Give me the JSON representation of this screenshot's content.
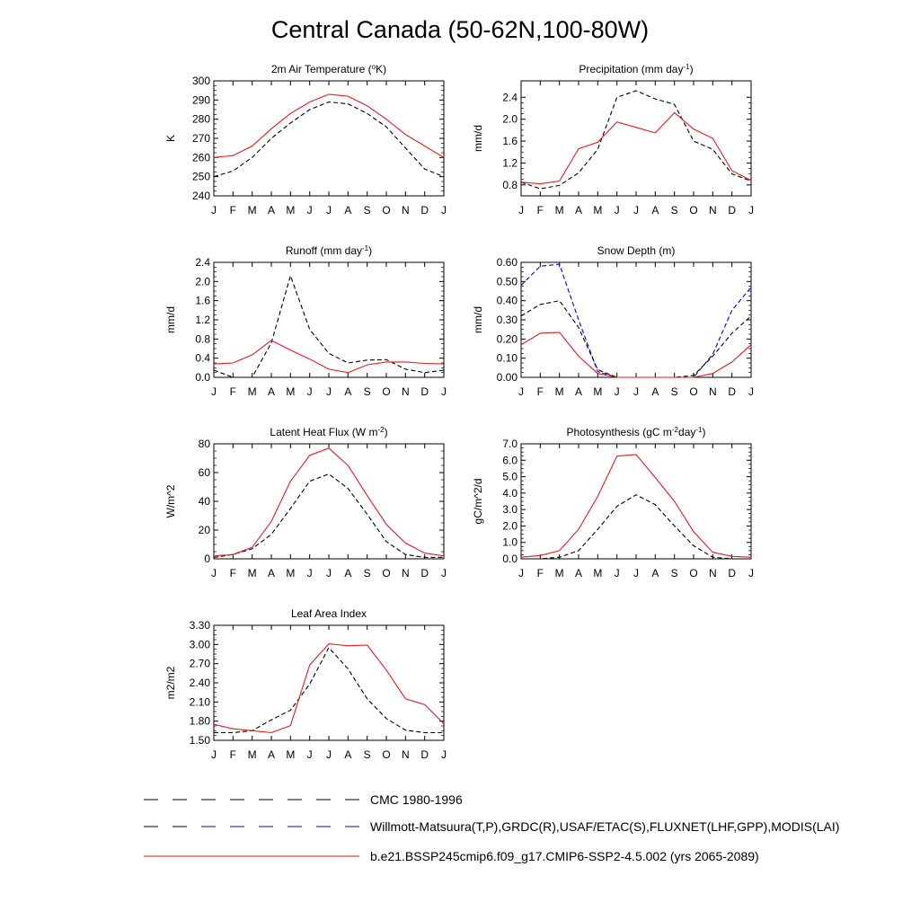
{
  "title": "Central Canada (50-62N,100-80W)",
  "months": [
    "J",
    "F",
    "M",
    "A",
    "M",
    "J",
    "J",
    "A",
    "S",
    "O",
    "N",
    "D",
    "J"
  ],
  "colors": {
    "obs": "#000000",
    "obs_alt": "#0000cc",
    "model": "#e8191c"
  },
  "legend": [
    {
      "label": "CMC 1980-1996",
      "style": "dashed",
      "color": "#000000"
    },
    {
      "label": "Willmott-Matsuura(T,P),GRDC(R),USAF/ETAC(S),FLUXNET(LHF,GPP),MODIS(LAI)",
      "style": "dashed-mixed",
      "color": "#000000",
      "color2": "#0000cc"
    },
    {
      "label": "b.e21.BSSP245cmip6.f09_g17.CMIP6-SSP2-4.5.002 (yrs 2065-2089)",
      "style": "solid",
      "color": "#e8191c"
    }
  ],
  "chart_data": [
    {
      "type": "line",
      "title_main": "2m Air Temperature (",
      "title_sup": "o",
      "title_end": "K)",
      "ylabel": "K",
      "ylim": [
        240,
        300
      ],
      "yticks": [
        240,
        250,
        260,
        270,
        280,
        290,
        300
      ],
      "ytick_labels": [
        "240",
        "250",
        "260",
        "270",
        "280",
        "290",
        "300"
      ],
      "series": [
        {
          "role": "obs",
          "style": "dashed",
          "color": "#000000",
          "values": [
            250,
            253,
            260,
            270,
            278,
            285,
            289,
            288,
            283,
            276,
            265,
            254,
            250
          ]
        },
        {
          "role": "model",
          "style": "solid",
          "color": "#e8191c",
          "values": [
            260,
            261,
            266,
            275,
            283,
            289,
            293,
            292,
            287,
            280,
            272,
            266,
            260
          ]
        }
      ]
    },
    {
      "type": "line",
      "title_main": "Precipitation (mm day",
      "title_sup": "-1",
      "title_end": ")",
      "ylabel": "mm/d",
      "ylim": [
        0.6,
        2.7
      ],
      "yticks": [
        0.8,
        1.2,
        1.6,
        2.0,
        2.4
      ],
      "ytick_labels": [
        "0.8",
        "1.2",
        "1.6",
        "2.0",
        "2.4"
      ],
      "series": [
        {
          "role": "obs",
          "style": "dashed",
          "color": "#000000",
          "values": [
            0.85,
            0.73,
            0.79,
            1.02,
            1.45,
            2.4,
            2.52,
            2.37,
            2.27,
            1.6,
            1.45,
            1.0,
            0.87
          ]
        },
        {
          "role": "model",
          "style": "solid",
          "color": "#e8191c",
          "values": [
            0.85,
            0.82,
            0.87,
            1.46,
            1.58,
            1.95,
            1.85,
            1.75,
            2.12,
            1.82,
            1.65,
            1.06,
            0.88
          ]
        }
      ]
    },
    {
      "type": "line",
      "title_main": "Runoff (mm day",
      "title_sup": "-1",
      "title_end": ")",
      "ylabel": "mm/d",
      "ylim": [
        0,
        2.4
      ],
      "yticks": [
        0.0,
        0.4,
        0.8,
        1.2,
        1.6,
        2.0,
        2.4
      ],
      "ytick_labels": [
        "0.0",
        "0.4",
        "0.8",
        "1.2",
        "1.6",
        "2.0",
        "2.4"
      ],
      "series": [
        {
          "role": "obs",
          "style": "dashed",
          "color": "#000000",
          "values": [
            0.15,
            0.0,
            0.0,
            0.72,
            2.12,
            1.0,
            0.5,
            0.3,
            0.36,
            0.37,
            0.17,
            0.1,
            0.15
          ]
        },
        {
          "role": "model",
          "style": "solid",
          "color": "#e8191c",
          "values": [
            0.28,
            0.3,
            0.47,
            0.77,
            0.57,
            0.38,
            0.17,
            0.1,
            0.26,
            0.32,
            0.32,
            0.29,
            0.28
          ]
        }
      ]
    },
    {
      "type": "line",
      "title_main": "Snow Depth (m)",
      "title_sup": "",
      "title_end": "",
      "ylabel": "mm/d",
      "ylim": [
        0,
        0.6
      ],
      "yticks": [
        0.0,
        0.1,
        0.2,
        0.3,
        0.4,
        0.5,
        0.6
      ],
      "ytick_labels": [
        "0.00",
        "0.10",
        "0.20",
        "0.30",
        "0.40",
        "0.50",
        "0.60"
      ],
      "series": [
        {
          "role": "obs_alt",
          "style": "dashed",
          "color": "#0000cc",
          "values": [
            0.48,
            0.58,
            0.59,
            0.3,
            0.03,
            0.0,
            0.0,
            0.0,
            0.0,
            0.0,
            0.12,
            0.35,
            0.47
          ]
        },
        {
          "role": "obs",
          "style": "dashed",
          "color": "#000000",
          "values": [
            0.32,
            0.38,
            0.4,
            0.26,
            0.04,
            0.0,
            0.0,
            0.0,
            0.0,
            0.01,
            0.11,
            0.23,
            0.32
          ]
        },
        {
          "role": "model",
          "style": "solid",
          "color": "#e8191c",
          "values": [
            0.17,
            0.23,
            0.235,
            0.11,
            0.02,
            0.0,
            0.0,
            0.0,
            0.0,
            0.0,
            0.02,
            0.08,
            0.17
          ]
        }
      ]
    },
    {
      "type": "line",
      "title_main": "Latent Heat Flux (W m",
      "title_sup": "-2",
      "title_end": ")",
      "ylabel": "W/m^2",
      "ylim": [
        0,
        80
      ],
      "yticks": [
        0,
        20,
        40,
        60,
        80
      ],
      "ytick_labels": [
        "0",
        "20",
        "40",
        "60",
        "80"
      ],
      "series": [
        {
          "role": "obs",
          "style": "dashed",
          "color": "#000000",
          "values": [
            1,
            3,
            7,
            17,
            35,
            54,
            59,
            49,
            31,
            12,
            3,
            1,
            1
          ]
        },
        {
          "role": "model",
          "style": "solid",
          "color": "#e8191c",
          "values": [
            2,
            3,
            8,
            26,
            54,
            72,
            77,
            65,
            44,
            24,
            11,
            4,
            2
          ]
        }
      ]
    },
    {
      "type": "line",
      "title_main": "Photosynthesis (gC m",
      "title_sup": "-2",
      "title_end": "day",
      "title_sup2": "-1",
      "title_end2": ")",
      "ylabel": "gC/m^2/d",
      "ylim": [
        0,
        7
      ],
      "yticks": [
        0,
        1,
        2,
        3,
        4,
        5,
        6,
        7
      ],
      "ytick_labels": [
        "0.0",
        "1.0",
        "2.0",
        "3.0",
        "4.0",
        "5.0",
        "6.0",
        "7.0"
      ],
      "series": [
        {
          "role": "obs",
          "style": "dashed",
          "color": "#000000",
          "values": [
            0.0,
            0.0,
            0.1,
            0.5,
            1.8,
            3.2,
            3.9,
            3.3,
            2.0,
            0.8,
            0.1,
            0.0,
            0.0
          ]
        },
        {
          "role": "model",
          "style": "solid",
          "color": "#e8191c",
          "values": [
            0.1,
            0.2,
            0.5,
            1.8,
            3.8,
            6.25,
            6.35,
            4.95,
            3.5,
            1.65,
            0.4,
            0.15,
            0.1
          ]
        }
      ]
    },
    {
      "type": "line",
      "title_main": "Leaf Area Index",
      "title_sup": "",
      "title_end": "",
      "ylabel": "m2/m2",
      "ylim": [
        1.5,
        3.3
      ],
      "yticks": [
        1.5,
        1.8,
        2.1,
        2.4,
        2.7,
        3.0,
        3.3
      ],
      "ytick_labels": [
        "1.50",
        "1.80",
        "2.10",
        "2.40",
        "2.70",
        "3.00",
        "3.30"
      ],
      "series": [
        {
          "role": "obs",
          "style": "dashed",
          "color": "#000000",
          "values": [
            1.62,
            1.62,
            1.65,
            1.82,
            1.97,
            2.38,
            2.95,
            2.62,
            2.15,
            1.84,
            1.66,
            1.62,
            1.62
          ]
        },
        {
          "role": "model",
          "style": "solid",
          "color": "#e8191c",
          "values": [
            1.75,
            1.68,
            1.65,
            1.62,
            1.73,
            2.68,
            3.01,
            2.98,
            2.99,
            2.6,
            2.15,
            2.06,
            1.76
          ]
        }
      ]
    }
  ]
}
